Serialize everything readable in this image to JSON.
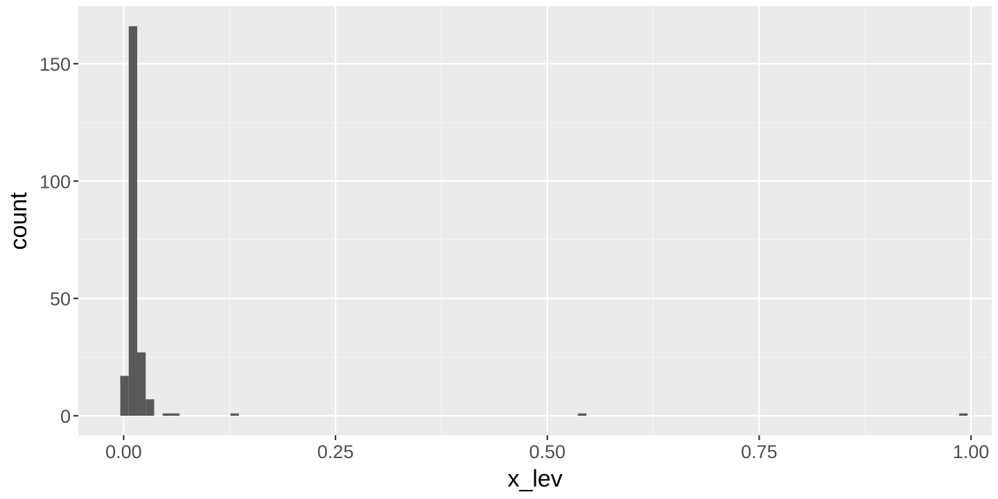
{
  "chart_data": {
    "type": "bar",
    "subtype": "histogram",
    "xlabel": "x_lev",
    "ylabel": "count",
    "xlim": [
      -0.0535,
      1.0245
    ],
    "ylim": [
      -8.3,
      174.5
    ],
    "x_ticks": [
      0.0,
      0.25,
      0.5,
      0.75,
      1.0
    ],
    "x_tick_labels": [
      "0.00",
      "0.25",
      "0.50",
      "0.75",
      "1.00"
    ],
    "x_minor_ticks": [
      0.125,
      0.375,
      0.625,
      0.875
    ],
    "y_ticks": [
      0,
      50,
      100,
      150
    ],
    "y_tick_labels": [
      "0",
      "50",
      "100",
      "150"
    ],
    "y_minor_ticks": [
      25,
      75,
      125
    ],
    "bin_width": 0.01,
    "bins": [
      {
        "x0": -0.004,
        "x1": 0.006,
        "count": 17
      },
      {
        "x0": 0.006,
        "x1": 0.016,
        "count": 166
      },
      {
        "x0": 0.016,
        "x1": 0.026,
        "count": 27
      },
      {
        "x0": 0.026,
        "x1": 0.036,
        "count": 7
      },
      {
        "x0": 0.046,
        "x1": 0.056,
        "count": 1
      },
      {
        "x0": 0.056,
        "x1": 0.066,
        "count": 1
      },
      {
        "x0": 0.126,
        "x1": 0.136,
        "count": 1
      },
      {
        "x0": 0.536,
        "x1": 0.546,
        "count": 1
      },
      {
        "x0": 0.986,
        "x1": 0.996,
        "count": 1
      }
    ],
    "grid": true,
    "legend": "none"
  },
  "colors": {
    "panel_background": "#ebebeb",
    "grid_major": "#ffffff",
    "grid_minor": "#f5f5f5",
    "bar_fill": "#595959",
    "tick_text": "#4d4d4d",
    "tick_mark": "#333333",
    "axis_title": "#000000"
  }
}
